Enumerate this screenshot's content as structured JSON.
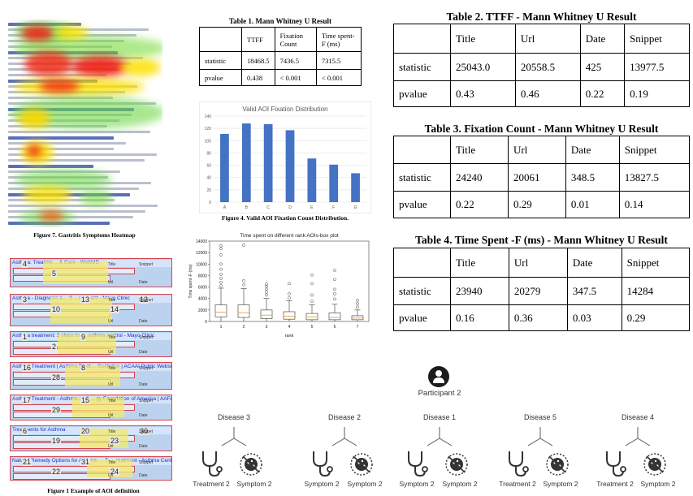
{
  "fig7": {
    "caption": "Figure 7. Gastritis Symptoms Heatmap"
  },
  "fig1": {
    "caption": "Figure 1 Example of AOI definition",
    "aois": [
      {
        "title": "Asthma: Treatme… & Care - WebMD",
        "nums": [
          "4",
          "5"
        ]
      },
      {
        "title": "Asthma - Diagnosis a… 3 …eatment - Mayo Clinic",
        "nums": [
          "3",
          "10",
          "13",
          "14",
          "12"
        ]
      },
      {
        "title": "Asthma treatment: 3 steps to … asthma control - Mayo Clinic",
        "nums": [
          "1",
          "2",
          "9"
        ]
      },
      {
        "title": "Asthma Treatment | Asthma Treat… Guideline | ACAAI Public Website",
        "nums": [
          "16",
          "28",
          "8"
        ]
      },
      {
        "title": "Asthma Treatment - Asthma and … gy Foundation of America | AAFA",
        "nums": [
          "17",
          "29",
          "15"
        ]
      },
      {
        "title": "Treatments for Asthma",
        "nums": [
          "6",
          "19",
          "20",
          "23",
          "30"
        ]
      },
      {
        "title": "Natural Remedy Options for Asthma … 7 … reatment - Asthma Center …",
        "nums": [
          "21",
          "22",
          "31",
          "24"
        ]
      }
    ],
    "tags": [
      "Title",
      "Snippet",
      "Url",
      "Date"
    ]
  },
  "table1": {
    "caption": "Table 1. Mann Whitney U Result",
    "headers": [
      "",
      "TTFF",
      "Fixation Count",
      "Time spent-F (ms)"
    ],
    "rows": [
      [
        "statistic",
        "18468.5",
        "7436.5",
        "7315.5"
      ],
      [
        "pvalue",
        "0.438",
        "< 0.001",
        "< 0.001"
      ]
    ]
  },
  "fig4": {
    "caption": "Figure 4. Valid AOI Fixation Count Distribution.",
    "chart_data": {
      "type": "bar",
      "title": "Valid AOI Fixation Distribution",
      "categories": [
        "A",
        "B",
        "C",
        "D",
        "E",
        "F",
        "G"
      ],
      "values": [
        111,
        128,
        127,
        117,
        71,
        61,
        47
      ],
      "ylim": [
        0,
        140
      ],
      "yticks": [
        0,
        20,
        40,
        60,
        80,
        100,
        120,
        140
      ],
      "grid": true,
      "bar_color": "#4472c4"
    }
  },
  "boxplot": {
    "chart_data": {
      "type": "box",
      "title": "Time spent on different rank AOIs-box plot",
      "xlabel": "rank",
      "ylabel": "Time spent -F (ms)",
      "ylim": [
        0,
        14000
      ],
      "yticks": [
        0,
        2000,
        4000,
        6000,
        8000,
        10000,
        12000,
        14000
      ],
      "categories": [
        "1",
        "2",
        "3",
        "4",
        "5",
        "6",
        "7"
      ],
      "boxes": [
        {
          "whislo": 0,
          "q1": 800,
          "med": 1600,
          "q3": 2900,
          "whishi": 5800,
          "fliers": [
            6200,
            6800,
            7500,
            8200,
            9100,
            10000,
            11600,
            12700,
            13200
          ]
        },
        {
          "whislo": 0,
          "q1": 700,
          "med": 1500,
          "q3": 2900,
          "whishi": 5700,
          "fliers": [
            6400,
            7100,
            13300
          ]
        },
        {
          "whislo": 0,
          "q1": 500,
          "med": 1100,
          "q3": 2000,
          "whishi": 4000,
          "fliers": [
            4600,
            5100,
            5600,
            6100,
            6500
          ]
        },
        {
          "whislo": 0,
          "q1": 400,
          "med": 900,
          "q3": 1700,
          "whishi": 3600,
          "fliers": [
            4100,
            4800,
            6600
          ]
        },
        {
          "whislo": 0,
          "q1": 300,
          "med": 800,
          "q3": 1400,
          "whishi": 2900,
          "fliers": [
            3500,
            4600,
            6600,
            8100
          ]
        },
        {
          "whislo": 0,
          "q1": 300,
          "med": 700,
          "q3": 1500,
          "whishi": 3000,
          "fliers": [
            3900,
            4800,
            5600,
            7300,
            8900
          ]
        },
        {
          "whislo": 0,
          "q1": 300,
          "med": 600,
          "q3": 1000,
          "whishi": 2000,
          "fliers": [
            2500,
            3100,
            3700
          ]
        }
      ]
    }
  },
  "table2": {
    "caption": "Table 2. TTFF - Mann Whitney U Result",
    "headers": [
      "",
      "Title",
      "Url",
      "Date",
      "Snippet"
    ],
    "rows": [
      [
        "statistic",
        "25043.0",
        "20558.5",
        "425",
        "13977.5"
      ],
      [
        "pvalue",
        "0.43",
        "0.46",
        "0.22",
        "0.19"
      ]
    ]
  },
  "table3": {
    "caption": "Table 3. Fixation Count - Mann Whitney U Result",
    "headers": [
      "",
      "Title",
      "Url",
      "Date",
      "Snippet"
    ],
    "rows": [
      [
        "statistic",
        "24240",
        "20061",
        "348.5",
        "13827.5"
      ],
      [
        "pvalue",
        "0.22",
        "0.29",
        "0.01",
        "0.14"
      ]
    ]
  },
  "table4": {
    "caption": "Table 4. Time Spent -F (ms) - Mann Whitney U Result",
    "headers": [
      "",
      "Title",
      "Url",
      "Date",
      "Snippet"
    ],
    "rows": [
      [
        "statistic",
        "23940",
        "20279",
        "347.5",
        "14284"
      ],
      [
        "pvalue",
        "0.16",
        "0.36",
        "0.03",
        "0.29"
      ]
    ]
  },
  "participant": {
    "label": "Participant 2",
    "icon": "person-icon",
    "diseases": [
      {
        "name": "Disease 3",
        "treatment": "Treatment 2",
        "symptom": "Symptom 2"
      },
      {
        "name": "Disease 2",
        "treatment": "Symptom 2",
        "symptom": "Symptom 2"
      },
      {
        "name": "Disease 1",
        "treatment": "Symptom 2",
        "symptom": "Symptom 2"
      },
      {
        "name": "Disease 5",
        "treatment": "Treatment 2",
        "symptom": "Symptom 2"
      },
      {
        "name": "Disease 4",
        "treatment": "Treatment 2",
        "symptom": "Symptom 2"
      }
    ]
  },
  "colors": {
    "bar": "#4472c4",
    "heat_red": "#e8261d",
    "heat_yellow": "#f5e400",
    "heat_green": "#5fd14a",
    "aoi_border": "#d3464f"
  }
}
